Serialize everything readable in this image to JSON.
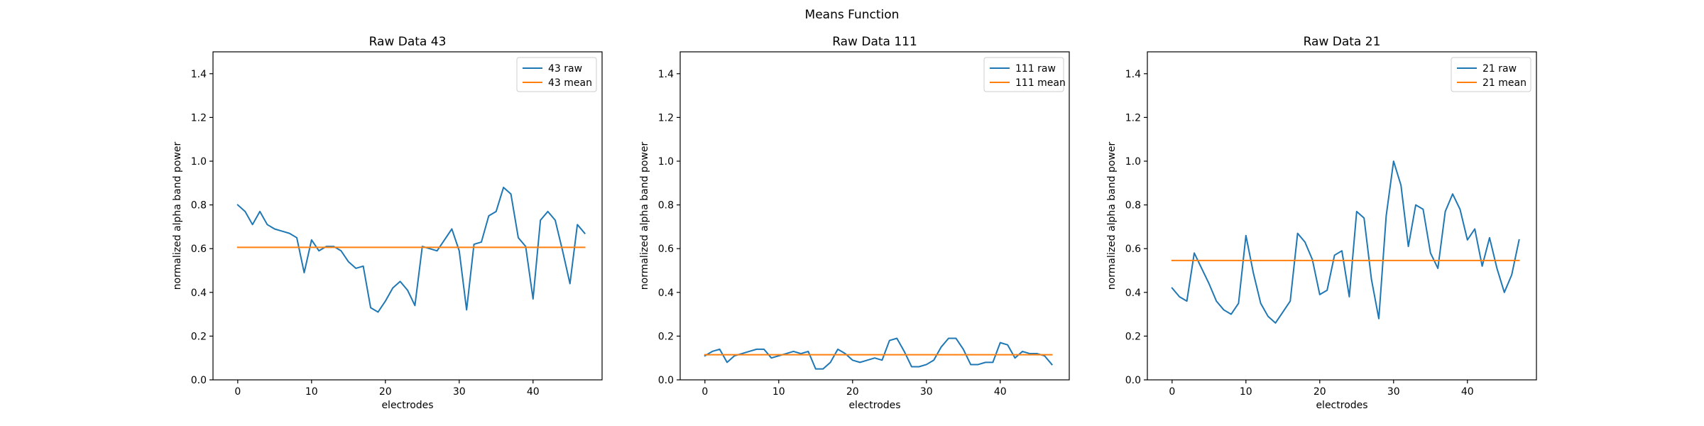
{
  "figure": {
    "title": "Means Function"
  },
  "colors": {
    "raw": "#1f77b4",
    "mean": "#ff7f0e",
    "axis": "#000000"
  },
  "chart_data": [
    {
      "type": "line",
      "title": "Raw Data 43",
      "xlabel": "electrodes",
      "ylabel": "normalized alpha band power",
      "xlim": [
        -3.35,
        49.35
      ],
      "ylim": [
        0,
        1.5
      ],
      "xticks": [
        0,
        10,
        20,
        30,
        40
      ],
      "yticks": [
        0.0,
        0.2,
        0.4,
        0.6,
        0.8,
        1.0,
        1.2,
        1.4
      ],
      "ytick_labels": [
        "0.0",
        "0.2",
        "0.4",
        "0.6",
        "0.8",
        "1.0",
        "1.2",
        "1.4"
      ],
      "legend": "top-right",
      "x": [
        0,
        1,
        2,
        3,
        4,
        5,
        6,
        7,
        8,
        9,
        10,
        11,
        12,
        13,
        14,
        15,
        16,
        17,
        18,
        19,
        20,
        21,
        22,
        23,
        24,
        25,
        26,
        27,
        28,
        29,
        30,
        31,
        32,
        33,
        34,
        35,
        36,
        37,
        38,
        39,
        40,
        41,
        42,
        43,
        44,
        45,
        46,
        47
      ],
      "series": [
        {
          "name": "43 raw",
          "values": [
            0.8,
            0.77,
            0.71,
            0.77,
            0.71,
            0.69,
            0.68,
            0.67,
            0.65,
            0.49,
            0.64,
            0.59,
            0.61,
            0.61,
            0.59,
            0.54,
            0.51,
            0.52,
            0.33,
            0.31,
            0.36,
            0.42,
            0.45,
            0.41,
            0.34,
            0.61,
            0.6,
            0.59,
            0.64,
            0.69,
            0.59,
            0.32,
            0.62,
            0.63,
            0.75,
            0.77,
            0.88,
            0.85,
            0.65,
            0.61,
            0.37,
            0.73,
            0.77,
            0.73,
            0.59,
            0.44,
            0.71,
            0.67
          ]
        },
        {
          "name": "43 mean",
          "values": [
            0.606,
            0.606,
            0.606,
            0.606,
            0.606,
            0.606,
            0.606,
            0.606,
            0.606,
            0.606,
            0.606,
            0.606,
            0.606,
            0.606,
            0.606,
            0.606,
            0.606,
            0.606,
            0.606,
            0.606,
            0.606,
            0.606,
            0.606,
            0.606,
            0.606,
            0.606,
            0.606,
            0.606,
            0.606,
            0.606,
            0.606,
            0.606,
            0.606,
            0.606,
            0.606,
            0.606,
            0.606,
            0.606,
            0.606,
            0.606,
            0.606,
            0.606,
            0.606,
            0.606,
            0.606,
            0.606,
            0.606,
            0.606
          ]
        }
      ]
    },
    {
      "type": "line",
      "title": "Raw Data 111",
      "xlabel": "electrodes",
      "ylabel": "normalized alpha band power",
      "xlim": [
        -3.35,
        49.35
      ],
      "ylim": [
        0,
        1.5
      ],
      "xticks": [
        0,
        10,
        20,
        30,
        40
      ],
      "yticks": [
        0.0,
        0.2,
        0.4,
        0.6,
        0.8,
        1.0,
        1.2,
        1.4
      ],
      "ytick_labels": [
        "0.0",
        "0.2",
        "0.4",
        "0.6",
        "0.8",
        "1.0",
        "1.2",
        "1.4"
      ],
      "legend": "top-right",
      "x": [
        0,
        1,
        2,
        3,
        4,
        5,
        6,
        7,
        8,
        9,
        10,
        11,
        12,
        13,
        14,
        15,
        16,
        17,
        18,
        19,
        20,
        21,
        22,
        23,
        24,
        25,
        26,
        27,
        28,
        29,
        30,
        31,
        32,
        33,
        34,
        35,
        36,
        37,
        38,
        39,
        40,
        41,
        42,
        43,
        44,
        45,
        46,
        47
      ],
      "series": [
        {
          "name": "111 raw",
          "values": [
            0.11,
            0.13,
            0.14,
            0.08,
            0.11,
            0.12,
            0.13,
            0.14,
            0.14,
            0.1,
            0.11,
            0.12,
            0.13,
            0.12,
            0.13,
            0.05,
            0.05,
            0.08,
            0.14,
            0.12,
            0.09,
            0.08,
            0.09,
            0.1,
            0.09,
            0.18,
            0.19,
            0.13,
            0.06,
            0.06,
            0.07,
            0.09,
            0.15,
            0.19,
            0.19,
            0.14,
            0.07,
            0.07,
            0.08,
            0.08,
            0.17,
            0.16,
            0.1,
            0.13,
            0.12,
            0.12,
            0.11,
            0.07
          ]
        },
        {
          "name": "111 mean",
          "values": [
            0.115,
            0.115,
            0.115,
            0.115,
            0.115,
            0.115,
            0.115,
            0.115,
            0.115,
            0.115,
            0.115,
            0.115,
            0.115,
            0.115,
            0.115,
            0.115,
            0.115,
            0.115,
            0.115,
            0.115,
            0.115,
            0.115,
            0.115,
            0.115,
            0.115,
            0.115,
            0.115,
            0.115,
            0.115,
            0.115,
            0.115,
            0.115,
            0.115,
            0.115,
            0.115,
            0.115,
            0.115,
            0.115,
            0.115,
            0.115,
            0.115,
            0.115,
            0.115,
            0.115,
            0.115,
            0.115,
            0.115,
            0.115
          ]
        }
      ]
    },
    {
      "type": "line",
      "title": "Raw Data 21",
      "xlabel": "electrodes",
      "ylabel": "normalized alpha band power",
      "xlim": [
        -3.35,
        49.35
      ],
      "ylim": [
        0,
        1.5
      ],
      "xticks": [
        0,
        10,
        20,
        30,
        40
      ],
      "yticks": [
        0.0,
        0.2,
        0.4,
        0.6,
        0.8,
        1.0,
        1.2,
        1.4
      ],
      "ytick_labels": [
        "0.0",
        "0.2",
        "0.4",
        "0.6",
        "0.8",
        "1.0",
        "1.2",
        "1.4"
      ],
      "legend": "top-right",
      "x": [
        0,
        1,
        2,
        3,
        4,
        5,
        6,
        7,
        8,
        9,
        10,
        11,
        12,
        13,
        14,
        15,
        16,
        17,
        18,
        19,
        20,
        21,
        22,
        23,
        24,
        25,
        26,
        27,
        28,
        29,
        30,
        31,
        32,
        33,
        34,
        35,
        36,
        37,
        38,
        39,
        40,
        41,
        42,
        43,
        44,
        45,
        46,
        47
      ],
      "series": [
        {
          "name": "21 raw",
          "values": [
            0.42,
            0.38,
            0.36,
            0.58,
            0.51,
            0.44,
            0.36,
            0.32,
            0.3,
            0.35,
            0.66,
            0.49,
            0.35,
            0.29,
            0.26,
            0.31,
            0.36,
            0.67,
            0.63,
            0.55,
            0.39,
            0.41,
            0.57,
            0.59,
            0.38,
            0.77,
            0.74,
            0.46,
            0.28,
            0.75,
            1.0,
            0.89,
            0.61,
            0.8,
            0.78,
            0.58,
            0.51,
            0.77,
            0.85,
            0.78,
            0.64,
            0.69,
            0.52,
            0.65,
            0.51,
            0.4,
            0.48,
            0.64
          ]
        },
        {
          "name": "21 mean",
          "values": [
            0.546,
            0.546,
            0.546,
            0.546,
            0.546,
            0.546,
            0.546,
            0.546,
            0.546,
            0.546,
            0.546,
            0.546,
            0.546,
            0.546,
            0.546,
            0.546,
            0.546,
            0.546,
            0.546,
            0.546,
            0.546,
            0.546,
            0.546,
            0.546,
            0.546,
            0.546,
            0.546,
            0.546,
            0.546,
            0.546,
            0.546,
            0.546,
            0.546,
            0.546,
            0.546,
            0.546,
            0.546,
            0.546,
            0.546,
            0.546,
            0.546,
            0.546,
            0.546,
            0.546,
            0.546,
            0.546,
            0.546,
            0.546
          ]
        }
      ]
    }
  ]
}
